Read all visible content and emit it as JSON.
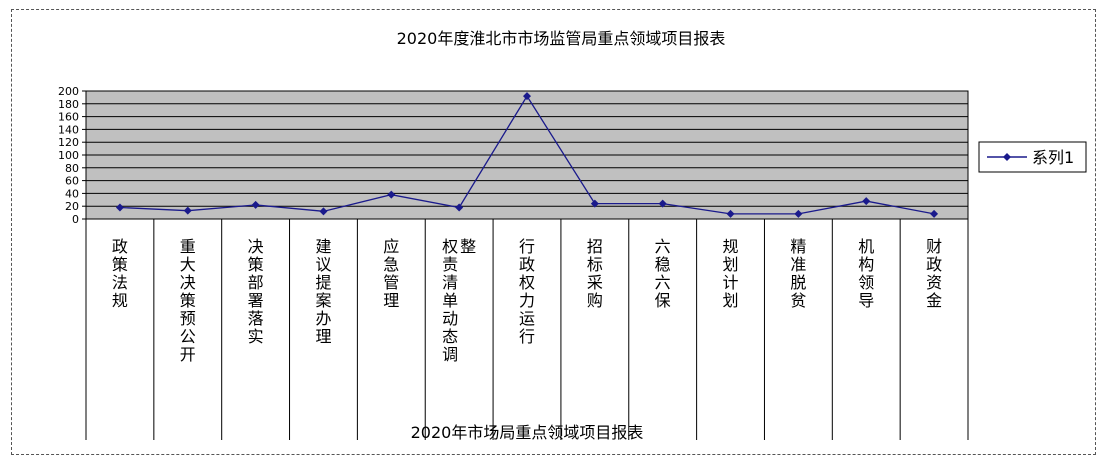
{
  "chart_data": {
    "type": "line",
    "title": "2020年度淮北市市场监管局重点领域项目报表",
    "xlabel": "2020年市场局重点领域项目报表",
    "ylabel": "",
    "ylim": [
      0,
      200
    ],
    "yticks": [
      0,
      20,
      40,
      60,
      80,
      100,
      120,
      140,
      160,
      180,
      200
    ],
    "grid": true,
    "legend_position": "right",
    "categories": [
      "政策法规",
      "重大决策预公开",
      "决策部署落实",
      "建议提案办理",
      "应急管理",
      "权责清单动态调整",
      "行政权力运行",
      "招标采购",
      "六稳六保",
      "规划计划",
      "精准脱贫",
      "机构领导",
      "财政资金"
    ],
    "series": [
      {
        "name": "系列1",
        "values": [
          18,
          13,
          22,
          12,
          38,
          18,
          192,
          24,
          24,
          8,
          8,
          28,
          8
        ]
      }
    ],
    "colors": {
      "plot_area": "#c0c0c0",
      "line": "#1a1a8c",
      "grid": "#000000"
    }
  }
}
